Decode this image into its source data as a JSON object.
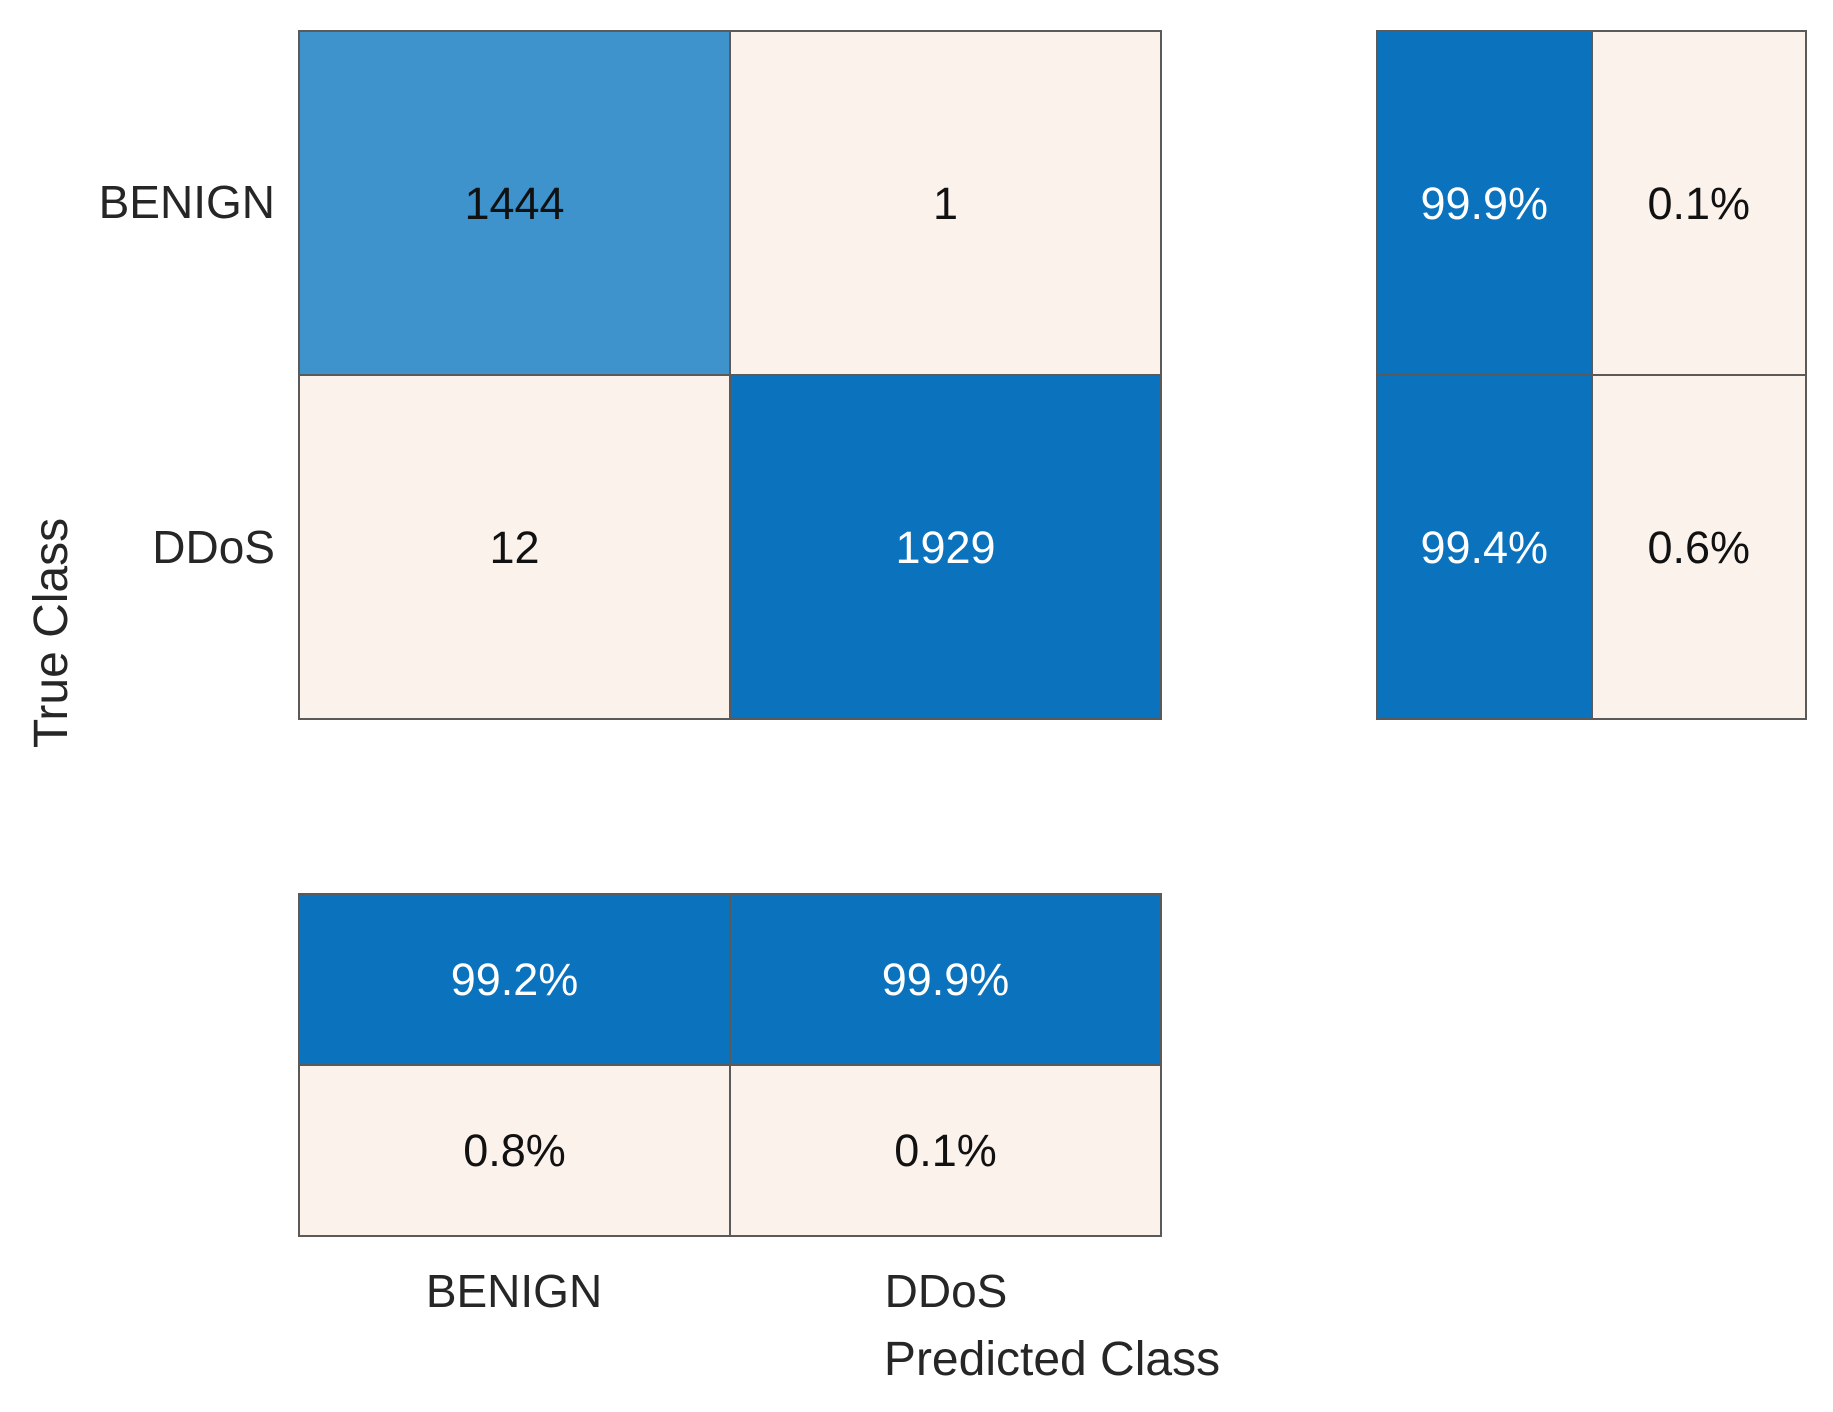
{
  "chart_data": {
    "type": "heatmap",
    "subtype": "confusion-matrix",
    "title": "",
    "xlabel": "Predicted Class",
    "ylabel": "True Class",
    "classes": [
      "BENIGN",
      "DDoS"
    ],
    "matrix": [
      [
        1444,
        1
      ],
      [
        12,
        1929
      ]
    ],
    "row_summary_pct": [
      [
        "99.9%",
        "0.1%"
      ],
      [
        "99.4%",
        "0.6%"
      ]
    ],
    "column_summary_pct": [
      [
        "99.2%",
        "99.9%"
      ],
      [
        "0.8%",
        "0.1%"
      ]
    ],
    "layout": {
      "legend": "none",
      "grid": "on",
      "row_summary_position": "right",
      "column_summary_position": "bottom"
    },
    "colors": {
      "diagonal_high_blue": "#0B72BD",
      "diagonal_low_blue": "#3E93CD",
      "off_diagonal_cream": "#FCF2EC",
      "gridline_gray": "#5A5A5A",
      "text_dark": "#1A1A1A",
      "text_light": "#FFFFFF",
      "background": "#FFFFFF"
    }
  }
}
